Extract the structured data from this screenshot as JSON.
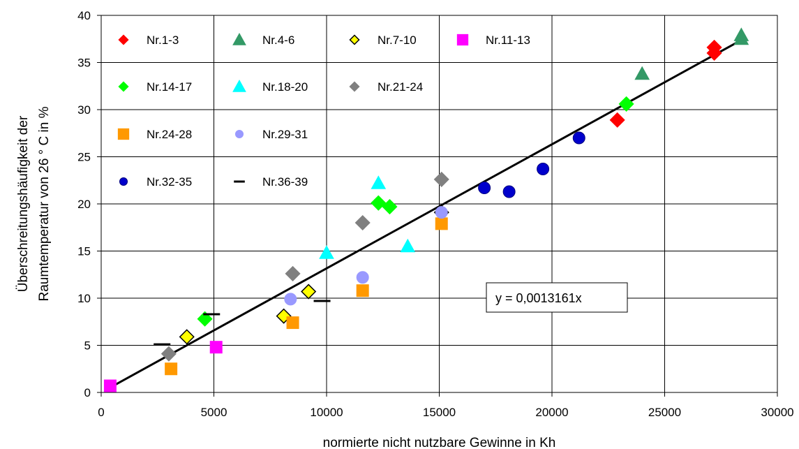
{
  "chart_data": {
    "type": "scatter",
    "xlabel": "normierte nicht nutzbare Gewinne in Kh",
    "ylabel_lines": [
      "Überschreitungshäufigkeit der",
      "Raumtemperatur von 26 ° C in %"
    ],
    "xlim": [
      0,
      30000
    ],
    "ylim": [
      0,
      40
    ],
    "xticks": [
      0,
      5000,
      10000,
      15000,
      20000,
      25000,
      30000
    ],
    "yticks": [
      0,
      5,
      10,
      15,
      20,
      25,
      30,
      35,
      40
    ],
    "grid": true,
    "legend_position": "top-left",
    "series": [
      {
        "name": "Nr.1-3",
        "marker": "diamond",
        "color": "#ff0000",
        "stroke": "#ff0000",
        "points": [
          [
            22900,
            28.9
          ],
          [
            27200,
            36.0
          ],
          [
            27200,
            36.6
          ]
        ]
      },
      {
        "name": "Nr.4-6",
        "marker": "triangle",
        "color": "#339966",
        "stroke": "#339966",
        "points": [
          [
            24000,
            33.8
          ],
          [
            28400,
            37.5
          ],
          [
            28400,
            37.9
          ]
        ]
      },
      {
        "name": "Nr.7-10",
        "marker": "diamond",
        "color": "#ffff00",
        "stroke": "#000000",
        "points": [
          [
            3800,
            5.9
          ],
          [
            8100,
            8.1
          ],
          [
            9200,
            10.7
          ],
          [
            15100,
            19.1
          ]
        ]
      },
      {
        "name": "Nr.11-13",
        "marker": "square",
        "color": "#ff00ff",
        "stroke": "#ff00ff",
        "points": [
          [
            400,
            0.7
          ],
          [
            5100,
            4.8
          ]
        ]
      },
      {
        "name": "Nr.14-17",
        "marker": "diamond",
        "color": "#00ff00",
        "stroke": "#00ff00",
        "points": [
          [
            4600,
            7.8
          ],
          [
            12300,
            20.1
          ],
          [
            12800,
            19.7
          ],
          [
            23300,
            30.6
          ]
        ]
      },
      {
        "name": "Nr.18-20",
        "marker": "triangle",
        "color": "#00ffff",
        "stroke": "#00ffff",
        "points": [
          [
            10000,
            14.8
          ],
          [
            12300,
            22.2
          ],
          [
            13600,
            15.5
          ]
        ]
      },
      {
        "name": "Nr.21-24",
        "marker": "diamond",
        "color": "#808080",
        "stroke": "#808080",
        "points": [
          [
            3000,
            4.1
          ],
          [
            8500,
            12.6
          ],
          [
            11600,
            18.0
          ],
          [
            15100,
            22.6
          ]
        ]
      },
      {
        "name": "Nr.24-28",
        "marker": "square",
        "color": "#ff9900",
        "stroke": "#ff9900",
        "points": [
          [
            3100,
            2.5
          ],
          [
            8500,
            7.4
          ],
          [
            11600,
            10.8
          ],
          [
            15100,
            17.9
          ]
        ]
      },
      {
        "name": "Nr.29-31",
        "marker": "circle",
        "color": "#9999ff",
        "stroke": "#9999ff",
        "points": [
          [
            8400,
            9.9
          ],
          [
            11600,
            12.2
          ],
          [
            15100,
            19.1
          ]
        ]
      },
      {
        "name": "Nr.32-35",
        "marker": "circle",
        "color": "#0000cc",
        "stroke": "#000080",
        "points": [
          [
            17000,
            21.7
          ],
          [
            18100,
            21.3
          ],
          [
            19600,
            23.7
          ],
          [
            21200,
            27.0
          ]
        ]
      },
      {
        "name": "Nr.36-39",
        "marker": "dash",
        "color": "#000000",
        "stroke": "#000000",
        "points": [
          [
            2700,
            5.1
          ],
          [
            4900,
            8.3
          ],
          [
            9800,
            9.7
          ]
        ]
      }
    ],
    "trendline": {
      "slope": 0.0013161,
      "x_range": [
        400,
        28400
      ],
      "label": "y = 0,0013161x"
    }
  }
}
